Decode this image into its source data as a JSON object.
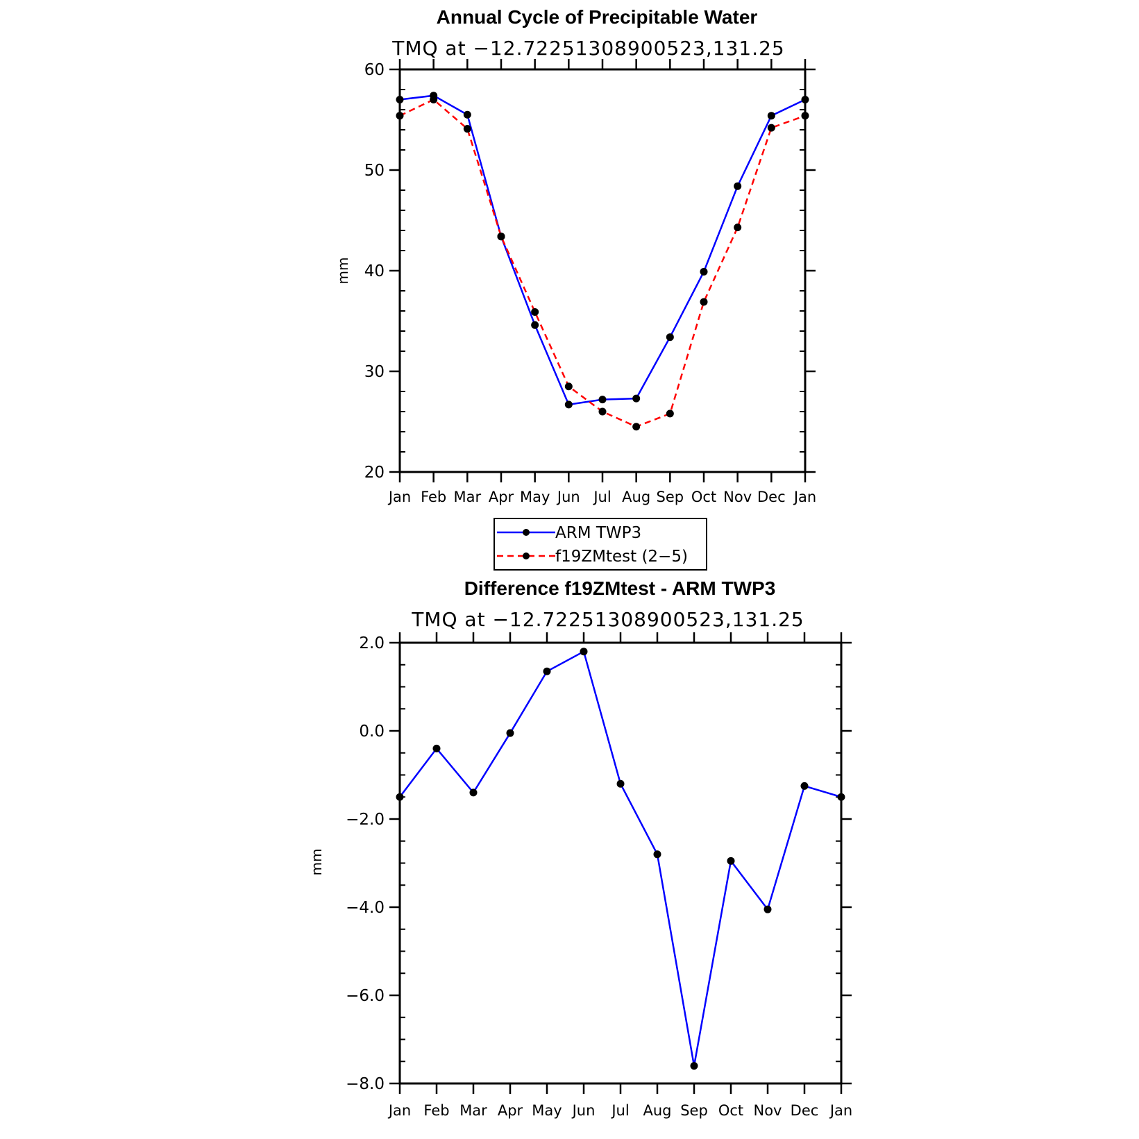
{
  "chart_data": [
    {
      "type": "line",
      "title": "Annual Cycle of Precipitable Water",
      "subtitle": "TMQ at −12.72251308900523,131.25",
      "xlabel": "",
      "ylabel": "mm",
      "categories": [
        "Jan",
        "Feb",
        "Mar",
        "Apr",
        "May",
        "Jun",
        "Jul",
        "Aug",
        "Sep",
        "Oct",
        "Nov",
        "Dec",
        "Jan"
      ],
      "ylim": [
        20,
        60
      ],
      "yticks": [
        20,
        30,
        40,
        50,
        60
      ],
      "ytick_labels": [
        "20",
        "30",
        "40",
        "50",
        "60"
      ],
      "series": [
        {
          "name": "ARM TWP3",
          "color": "#0000ff",
          "dash": "solid",
          "values": [
            57.0,
            57.4,
            55.5,
            43.4,
            34.6,
            26.7,
            27.2,
            27.3,
            33.4,
            39.9,
            48.4,
            55.4,
            57.0
          ]
        },
        {
          "name": "f19ZMtest (2−5)",
          "color": "#ff0000",
          "dash": "dashed",
          "values": [
            55.4,
            57.0,
            54.1,
            43.4,
            35.9,
            28.5,
            26.0,
            24.5,
            25.8,
            36.9,
            44.3,
            54.2,
            55.4
          ]
        }
      ],
      "legend": {
        "position": "bottom-center",
        "entries": [
          "ARM TWP3",
          "f19ZMtest (2−5)"
        ]
      }
    },
    {
      "type": "line",
      "title": "Difference f19ZMtest - ARM TWP3",
      "subtitle": "TMQ at −12.72251308900523,131.25",
      "xlabel": "",
      "ylabel": "mm",
      "categories": [
        "Jan",
        "Feb",
        "Mar",
        "Apr",
        "May",
        "Jun",
        "Jul",
        "Aug",
        "Sep",
        "Oct",
        "Nov",
        "Dec",
        "Jan"
      ],
      "ylim": [
        -8.0,
        2.0
      ],
      "yticks": [
        -8.0,
        -6.0,
        -4.0,
        -2.0,
        0.0,
        2.0
      ],
      "ytick_labels": [
        "−8.0",
        "−6.0",
        "−4.0",
        "−2.0",
        "0.0",
        "2.0"
      ],
      "series": [
        {
          "name": "Difference",
          "color": "#0000ff",
          "dash": "solid",
          "values": [
            -1.5,
            -0.4,
            -1.4,
            -0.05,
            1.35,
            1.8,
            -1.2,
            -2.8,
            -7.6,
            -2.95,
            -4.05,
            -1.25,
            -1.5
          ]
        }
      ]
    }
  ]
}
